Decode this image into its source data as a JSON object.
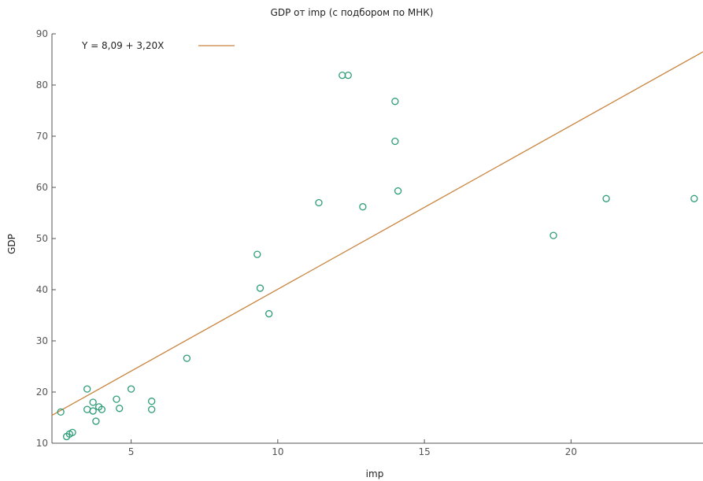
{
  "chart_data": {
    "type": "scatter",
    "title": "GDP от imp (с подбором по МНК)",
    "xlabel": "imp",
    "ylabel": "GDP",
    "xlim": [
      2.3,
      24.5
    ],
    "ylim": [
      10,
      90
    ],
    "xticks": [
      5,
      10,
      15,
      20
    ],
    "yticks": [
      10,
      20,
      30,
      40,
      50,
      60,
      70,
      80,
      90
    ],
    "grid": false,
    "legend_position": "top-left",
    "colors": {
      "points": "#2e9d78",
      "fit_line": "#c8843e",
      "axis": "#555555"
    },
    "fit": {
      "label": "Y = 8,09 + 3,20X",
      "intercept": 8.09,
      "slope": 3.2
    },
    "points": [
      {
        "x": 2.6,
        "y": 16.1
      },
      {
        "x": 2.8,
        "y": 11.3
      },
      {
        "x": 2.9,
        "y": 11.8
      },
      {
        "x": 3.0,
        "y": 12.1
      },
      {
        "x": 3.5,
        "y": 20.6
      },
      {
        "x": 3.5,
        "y": 16.6
      },
      {
        "x": 3.7,
        "y": 18.0
      },
      {
        "x": 3.7,
        "y": 16.3
      },
      {
        "x": 3.8,
        "y": 14.3
      },
      {
        "x": 3.9,
        "y": 17.1
      },
      {
        "x": 4.0,
        "y": 16.6
      },
      {
        "x": 4.5,
        "y": 18.6
      },
      {
        "x": 4.6,
        "y": 16.8
      },
      {
        "x": 5.0,
        "y": 20.6
      },
      {
        "x": 5.7,
        "y": 18.2
      },
      {
        "x": 5.7,
        "y": 16.6
      },
      {
        "x": 6.9,
        "y": 26.6
      },
      {
        "x": 9.3,
        "y": 46.9
      },
      {
        "x": 9.4,
        "y": 40.3
      },
      {
        "x": 9.7,
        "y": 35.3
      },
      {
        "x": 11.4,
        "y": 57.0
      },
      {
        "x": 12.2,
        "y": 81.9
      },
      {
        "x": 12.4,
        "y": 81.9
      },
      {
        "x": 12.9,
        "y": 56.2
      },
      {
        "x": 14.0,
        "y": 76.8
      },
      {
        "x": 14.0,
        "y": 69.0
      },
      {
        "x": 14.1,
        "y": 59.3
      },
      {
        "x": 19.4,
        "y": 50.6
      },
      {
        "x": 21.2,
        "y": 57.8
      },
      {
        "x": 24.2,
        "y": 57.8
      }
    ]
  }
}
